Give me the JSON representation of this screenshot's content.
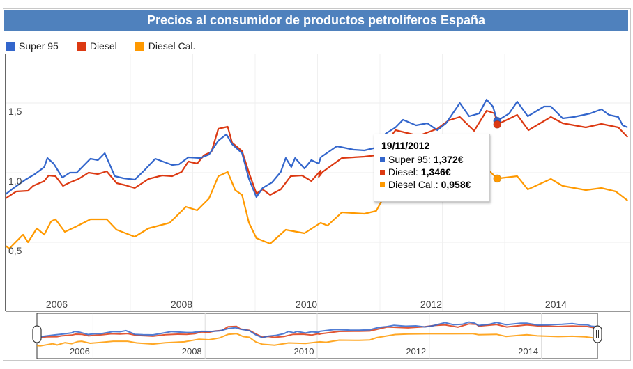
{
  "chart_data": {
    "type": "line",
    "title": "Precios al consumidor de productos petroliferos España",
    "xlabel": "",
    "ylabel": "",
    "xlim": [
      2005.0,
      2015.0
    ],
    "ylim": [
      0.0,
      1.85
    ],
    "x_ticks": [
      "2006",
      "2008",
      "2010",
      "2012",
      "2014"
    ],
    "y_ticks": [
      "0,5",
      "1,0",
      "1,5"
    ],
    "grid": true,
    "legend": "top-left",
    "series": [
      {
        "name": "Super 95",
        "color": "#3366cc",
        "points": [
          [
            2005.0,
            0.845
          ],
          [
            2005.13,
            0.89
          ],
          [
            2005.32,
            0.95
          ],
          [
            2005.47,
            0.99
          ],
          [
            2005.62,
            1.04
          ],
          [
            2005.67,
            1.105
          ],
          [
            2005.77,
            1.065
          ],
          [
            2005.91,
            0.965
          ],
          [
            2006.03,
            1.0
          ],
          [
            2006.14,
            1.0
          ],
          [
            2006.36,
            1.1
          ],
          [
            2006.48,
            1.09
          ],
          [
            2006.59,
            1.14
          ],
          [
            2006.75,
            0.975
          ],
          [
            2006.89,
            0.96
          ],
          [
            2007.07,
            0.95
          ],
          [
            2007.22,
            1.015
          ],
          [
            2007.4,
            1.1
          ],
          [
            2007.67,
            1.055
          ],
          [
            2007.78,
            1.06
          ],
          [
            2007.93,
            1.11
          ],
          [
            2008.12,
            1.105
          ],
          [
            2008.26,
            1.13
          ],
          [
            2008.41,
            1.23
          ],
          [
            2008.54,
            1.275
          ],
          [
            2008.63,
            1.205
          ],
          [
            2008.79,
            1.14
          ],
          [
            2008.9,
            0.955
          ],
          [
            2009.02,
            0.825
          ],
          [
            2009.12,
            0.89
          ],
          [
            2009.27,
            0.93
          ],
          [
            2009.41,
            1.005
          ],
          [
            2009.49,
            1.105
          ],
          [
            2009.58,
            1.04
          ],
          [
            2009.64,
            1.105
          ],
          [
            2009.79,
            1.03
          ],
          [
            2009.9,
            1.09
          ],
          [
            2010.02,
            1.065
          ],
          [
            2010.05,
            1.11
          ],
          [
            2010.31,
            1.19
          ],
          [
            2010.58,
            1.165
          ],
          [
            2010.75,
            1.16
          ],
          [
            2010.94,
            1.18
          ],
          [
            2011.09,
            1.28
          ],
          [
            2011.25,
            1.325
          ],
          [
            2011.37,
            1.38
          ],
          [
            2011.58,
            1.34
          ],
          [
            2011.76,
            1.355
          ],
          [
            2011.92,
            1.305
          ],
          [
            2012.06,
            1.355
          ],
          [
            2012.28,
            1.5
          ],
          [
            2012.43,
            1.405
          ],
          [
            2012.59,
            1.425
          ],
          [
            2012.71,
            1.525
          ],
          [
            2012.81,
            1.475
          ],
          [
            2012.88,
            1.372
          ],
          [
            2013.07,
            1.425
          ],
          [
            2013.2,
            1.51
          ],
          [
            2013.37,
            1.405
          ],
          [
            2013.63,
            1.475
          ],
          [
            2013.74,
            1.475
          ],
          [
            2013.93,
            1.39
          ],
          [
            2014.11,
            1.4
          ],
          [
            2014.37,
            1.425
          ],
          [
            2014.55,
            1.455
          ],
          [
            2014.67,
            1.415
          ],
          [
            2014.82,
            1.4
          ],
          [
            2014.89,
            1.34
          ],
          [
            2014.97,
            1.325
          ]
        ]
      },
      {
        "name": "Diesel",
        "color": "#dc3912",
        "points": [
          [
            2005.0,
            0.815
          ],
          [
            2005.17,
            0.865
          ],
          [
            2005.36,
            0.87
          ],
          [
            2005.44,
            0.905
          ],
          [
            2005.62,
            0.94
          ],
          [
            2005.69,
            0.98
          ],
          [
            2005.8,
            0.975
          ],
          [
            2005.92,
            0.905
          ],
          [
            2006.03,
            0.93
          ],
          [
            2006.17,
            0.955
          ],
          [
            2006.33,
            1.0
          ],
          [
            2006.48,
            0.99
          ],
          [
            2006.62,
            1.01
          ],
          [
            2006.78,
            0.925
          ],
          [
            2006.92,
            0.91
          ],
          [
            2007.07,
            0.89
          ],
          [
            2007.29,
            0.955
          ],
          [
            2007.51,
            0.98
          ],
          [
            2007.67,
            0.975
          ],
          [
            2007.82,
            1.005
          ],
          [
            2007.93,
            1.08
          ],
          [
            2008.07,
            1.065
          ],
          [
            2008.18,
            1.125
          ],
          [
            2008.3,
            1.15
          ],
          [
            2008.41,
            1.315
          ],
          [
            2008.56,
            1.33
          ],
          [
            2008.63,
            1.215
          ],
          [
            2008.79,
            1.155
          ],
          [
            2008.9,
            1.0
          ],
          [
            2009.02,
            0.85
          ],
          [
            2009.12,
            0.88
          ],
          [
            2009.24,
            0.84
          ],
          [
            2009.41,
            0.88
          ],
          [
            2009.57,
            0.975
          ],
          [
            2009.75,
            0.98
          ],
          [
            2009.9,
            0.94
          ],
          [
            2010.05,
            1.015
          ],
          [
            2010.02,
            0.97
          ],
          [
            2010.08,
            1.005
          ],
          [
            2010.39,
            1.105
          ],
          [
            2010.75,
            1.115
          ],
          [
            2010.94,
            1.125
          ],
          [
            2011.25,
            1.305
          ],
          [
            2011.62,
            1.265
          ],
          [
            2011.92,
            1.315
          ],
          [
            2012.1,
            1.375
          ],
          [
            2012.28,
            1.4
          ],
          [
            2012.51,
            1.3
          ],
          [
            2012.71,
            1.445
          ],
          [
            2012.84,
            1.425
          ],
          [
            2012.88,
            1.346
          ],
          [
            2013.2,
            1.415
          ],
          [
            2013.38,
            1.305
          ],
          [
            2013.74,
            1.4
          ],
          [
            2013.93,
            1.355
          ],
          [
            2014.3,
            1.325
          ],
          [
            2014.55,
            1.35
          ],
          [
            2014.82,
            1.325
          ],
          [
            2014.97,
            1.255
          ]
        ]
      },
      {
        "name": "Diesel Cal.",
        "color": "#ff9900",
        "points": [
          [
            2005.0,
            0.475
          ],
          [
            2005.06,
            0.455
          ],
          [
            2005.17,
            0.505
          ],
          [
            2005.28,
            0.555
          ],
          [
            2005.36,
            0.5
          ],
          [
            2005.5,
            0.6
          ],
          [
            2005.62,
            0.555
          ],
          [
            2005.73,
            0.65
          ],
          [
            2005.8,
            0.665
          ],
          [
            2005.95,
            0.575
          ],
          [
            2006.14,
            0.615
          ],
          [
            2006.36,
            0.665
          ],
          [
            2006.62,
            0.665
          ],
          [
            2006.78,
            0.59
          ],
          [
            2007.07,
            0.54
          ],
          [
            2007.29,
            0.6
          ],
          [
            2007.63,
            0.64
          ],
          [
            2007.89,
            0.755
          ],
          [
            2008.07,
            0.73
          ],
          [
            2008.26,
            0.815
          ],
          [
            2008.41,
            0.975
          ],
          [
            2008.56,
            1.005
          ],
          [
            2008.68,
            0.875
          ],
          [
            2008.79,
            0.84
          ],
          [
            2008.9,
            0.64
          ],
          [
            2009.02,
            0.53
          ],
          [
            2009.24,
            0.49
          ],
          [
            2009.49,
            0.59
          ],
          [
            2009.79,
            0.565
          ],
          [
            2010.05,
            0.64
          ],
          [
            2010.16,
            0.62
          ],
          [
            2010.39,
            0.715
          ],
          [
            2010.75,
            0.705
          ],
          [
            2010.94,
            0.725
          ],
          [
            2011.06,
            0.825
          ],
          [
            2011.39,
            0.965
          ],
          [
            2011.62,
            0.99
          ],
          [
            2012.0,
            1.0
          ],
          [
            2012.4,
            1.0
          ],
          [
            2012.77,
            1.005
          ],
          [
            2012.88,
            0.958
          ],
          [
            2013.2,
            0.975
          ],
          [
            2013.37,
            0.88
          ],
          [
            2013.74,
            0.955
          ],
          [
            2013.93,
            0.905
          ],
          [
            2014.3,
            0.875
          ],
          [
            2014.55,
            0.89
          ],
          [
            2014.78,
            0.865
          ],
          [
            2014.97,
            0.8
          ]
        ]
      }
    ],
    "highlight": {
      "x": 2012.88
    }
  },
  "tooltip": {
    "date": "19/11/2012",
    "rows": [
      {
        "label": "Super 95:",
        "value": "1,372€",
        "color": "#3366cc"
      },
      {
        "label": "Diesel:",
        "value": "1,346€",
        "color": "#dc3912"
      },
      {
        "label": "Diesel Cal.:",
        "value": "0,958€",
        "color": "#ff9900"
      }
    ]
  },
  "navigator": {
    "x_ticks": [
      "2006",
      "2008",
      "2010",
      "2012",
      "2014"
    ],
    "range": [
      2005.0,
      2015.0
    ]
  }
}
